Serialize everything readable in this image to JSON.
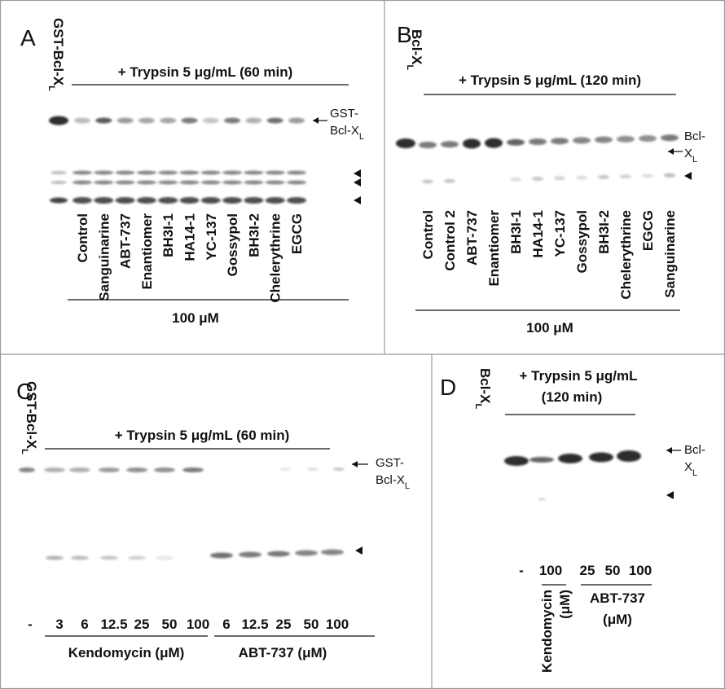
{
  "panel_a": {
    "label": "A",
    "sample": {
      "text": "GST-Bcl-X",
      "sub": "L"
    },
    "treatment": "+ Trypsin 5 μg/mL (60 min)",
    "lanes": [
      "Control",
      "Sanguinarine",
      "ABT-737",
      "Enantiomer",
      "BH3I-1",
      "HA14-1",
      "YC-137",
      "Gossypol",
      "BH3I-2",
      "Chelerythrine",
      "EGCG"
    ],
    "concentration": "100 μM",
    "band_label": {
      "line1": "GST-",
      "line2": "Bcl-X",
      "sub": "L"
    }
  },
  "panel_b": {
    "label": "B",
    "sample": {
      "text": "Bcl-X",
      "sub": "L"
    },
    "treatment": "+ Trypsin 5 μg/mL (120 min)",
    "lanes": [
      "Control",
      "Control 2",
      "ABT-737",
      "Enantiomer",
      "BH3I-1",
      "HA14-1",
      "YC-137",
      "Gossypol",
      "BH3I-2",
      "Chelerythrine",
      "EGCG",
      "Sanguinarine"
    ],
    "concentration": "100 μM",
    "band_label": {
      "line1": "Bcl-",
      "line2": "X",
      "sub": "L"
    }
  },
  "panel_c": {
    "label": "C",
    "sample": {
      "text": "GST-Bcl-X",
      "sub": "L"
    },
    "treatment": "+ Trypsin 5 μg/mL (60 min)",
    "lanes": [
      "-",
      "3",
      "6",
      "12.5",
      "25",
      "50",
      "100",
      "6",
      "12.5",
      "25",
      "50",
      "100"
    ],
    "groups": [
      "Kendomycin (μM)",
      "ABT-737 (μM)"
    ],
    "band_label": {
      "line1": "GST-",
      "line2": "Bcl-X",
      "sub": "L"
    }
  },
  "panel_d": {
    "label": "D",
    "sample": {
      "text": "Bcl-X",
      "sub": "L"
    },
    "treatment": [
      "+ Trypsin 5 μg/mL",
      "(120 min)"
    ],
    "lanes": [
      "-",
      "100",
      "25",
      "50",
      "100"
    ],
    "groups": {
      "kendomycin": [
        "Kendomycin",
        "(μM)"
      ],
      "abt": [
        "ABT-737",
        "(μM)"
      ]
    },
    "band_label": {
      "line1": "Bcl-",
      "line2": "X",
      "sub": "L"
    }
  }
}
